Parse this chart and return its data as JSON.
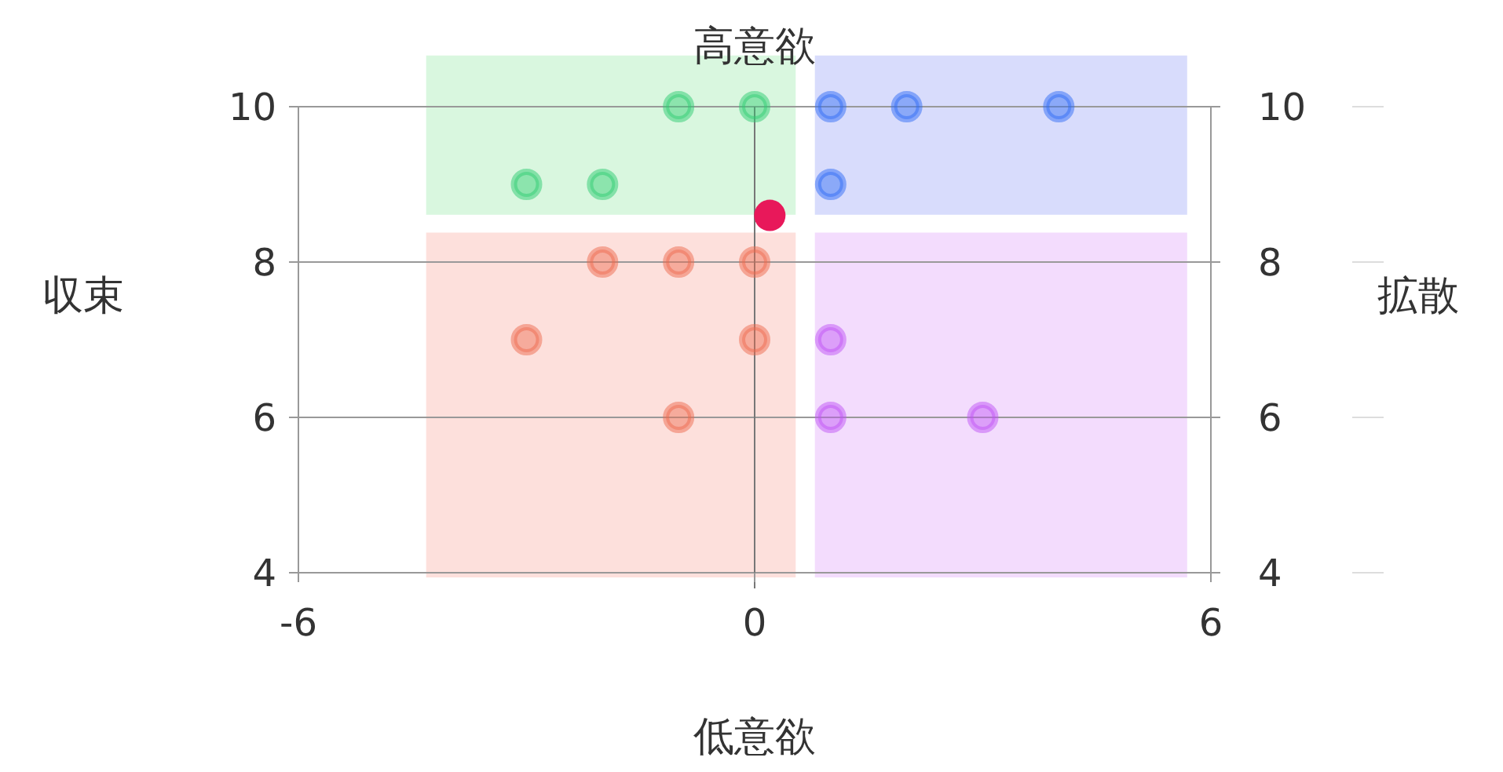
{
  "chart_data": {
    "type": "scatter",
    "title": "高意欲",
    "xlabel": "低意欲",
    "ylabel": "収束",
    "y2label": "拡散",
    "xlim": [
      -6,
      6
    ],
    "xticks": [
      -6,
      0,
      6
    ],
    "ylim": [
      4,
      10
    ],
    "yticks": [
      4,
      6,
      8,
      10
    ],
    "y2lim": [
      4,
      10
    ],
    "y2ticks": [
      4,
      6,
      8,
      10
    ],
    "grid": "y",
    "ref_lines": [
      {
        "axis": "x",
        "value": 0
      }
    ],
    "series": [
      {
        "color": "#2ecc71",
        "x": [
          -1,
          0,
          -3,
          -2
        ],
        "values": [
          10,
          10,
          9,
          9
        ]
      },
      {
        "color": "#2f6bf5",
        "x": [
          1,
          2,
          4,
          1
        ],
        "values": [
          10,
          10,
          10,
          9
        ]
      },
      {
        "color": "#ee6a4e",
        "x": [
          -2,
          -1,
          0,
          -3,
          0,
          -1
        ],
        "values": [
          8,
          8,
          8,
          7,
          7,
          6
        ]
      },
      {
        "color": "#c054f5",
        "x": [
          1,
          1,
          3
        ],
        "values": [
          7,
          6,
          6
        ]
      },
      {
        "color": "#e8185a",
        "x": [
          0.2
        ],
        "values": [
          8.6
        ]
      }
    ]
  }
}
